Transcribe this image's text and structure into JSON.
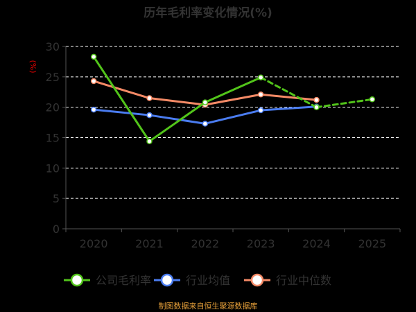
{
  "chart_data": {
    "type": "line",
    "title": "历年毛利率变化情况(%)",
    "ylabel": "(%)",
    "categories": [
      "2020",
      "2021",
      "2022",
      "2023",
      "2024",
      "2025"
    ],
    "ylim": [
      0,
      30
    ],
    "yticks": [
      0,
      5,
      10,
      15,
      20,
      25,
      30
    ],
    "grid": true,
    "legend_position": "bottom",
    "series": [
      {
        "name": "公司毛利率",
        "color": "#52c41a",
        "values": [
          28.3,
          14.4,
          20.8,
          24.9,
          20.0,
          21.3
        ],
        "dashed_from_index": 4
      },
      {
        "name": "行业均值",
        "color": "#4a7cf0",
        "values": [
          19.6,
          18.7,
          17.3,
          19.5,
          20.1,
          null
        ]
      },
      {
        "name": "行业中位数",
        "color": "#f58a66",
        "values": [
          24.3,
          21.5,
          20.4,
          22.1,
          21.2,
          null
        ]
      }
    ],
    "source": "制图数据来自恒生聚源数据库",
    "colors": {
      "title": "#333333",
      "axis_text": "#333333",
      "ylabel": "#e00000",
      "source": "#e8a13a",
      "grid": "#ffffff"
    }
  }
}
